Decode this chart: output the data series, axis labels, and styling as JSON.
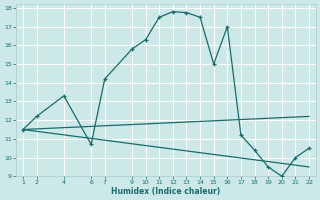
{
  "xlabel": "Humidex (Indice chaleur)",
  "bg_color": "#cde8e8",
  "grid_color": "#b0d8d8",
  "line_color": "#1a6b6b",
  "xlim": [
    0.5,
    22.5
  ],
  "ylim": [
    9,
    18.2
  ],
  "xticks": [
    1,
    2,
    4,
    6,
    7,
    9,
    10,
    11,
    12,
    13,
    14,
    15,
    16,
    17,
    18,
    19,
    20,
    21,
    22
  ],
  "yticks": [
    9,
    10,
    11,
    12,
    13,
    14,
    15,
    16,
    17,
    18
  ],
  "curve1_x": [
    1,
    2,
    4,
    6,
    7,
    9,
    10,
    11,
    12,
    13,
    14,
    15,
    16,
    17,
    18,
    19,
    20,
    21,
    22
  ],
  "curve1_y": [
    11.5,
    12.2,
    13.3,
    10.7,
    14.2,
    15.8,
    16.3,
    17.5,
    17.8,
    17.75,
    17.5,
    15.0,
    17.0,
    11.2,
    10.4,
    9.5,
    9.0,
    10.0,
    10.5
  ],
  "curve2_x": [
    1,
    22
  ],
  "curve2_y": [
    11.5,
    12.2
  ],
  "curve3_x": [
    1,
    22
  ],
  "curve3_y": [
    11.5,
    9.5
  ]
}
